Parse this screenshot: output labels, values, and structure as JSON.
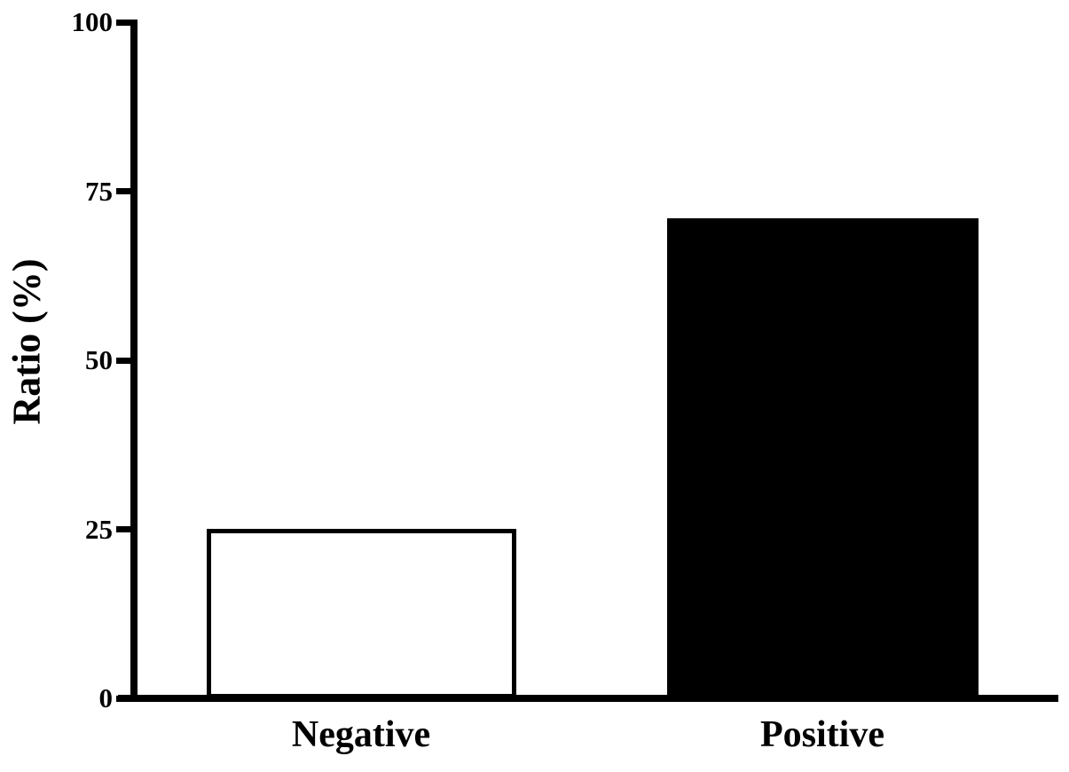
{
  "figure": {
    "background_color": "#ffffff",
    "foreground_color": "#000000"
  },
  "chart_data": {
    "type": "bar",
    "title": "",
    "xlabel": "",
    "ylabel": "Ratio (%)",
    "categories": [
      "Negative",
      "Positive"
    ],
    "values": [
      25,
      71
    ],
    "ylim": [
      0,
      100
    ],
    "yticks": [
      0,
      25,
      50,
      75,
      100
    ],
    "grid": false,
    "legend": false,
    "bar_styles": [
      {
        "category": "Negative",
        "fill": "#ffffff",
        "border": "#000000"
      },
      {
        "category": "Positive",
        "fill": "#000000",
        "border": "#000000"
      }
    ]
  }
}
